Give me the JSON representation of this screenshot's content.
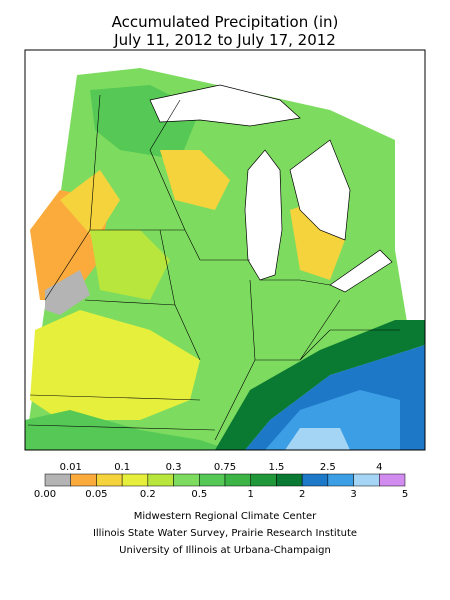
{
  "title": [
    "Accumulated Precipitation (in)",
    "July 11, 2012 to July 17, 2012"
  ],
  "legend": {
    "labels": [
      "0.00",
      "0.01",
      "0.05",
      "0.1",
      "0.2",
      "0.3",
      "0.5",
      "0.75",
      "1",
      "1.5",
      "2",
      "2.5",
      "3",
      "4",
      "5"
    ],
    "colors": [
      "#b4b4b4",
      "#fbab3c",
      "#f5d33c",
      "#e6ef3c",
      "#b9e63c",
      "#7ddc5f",
      "#55c855",
      "#3cb446",
      "#20983a",
      "#0a7a32",
      "#1e78c8",
      "#3c9fe6",
      "#a5d5f5",
      "#d28cf0"
    ]
  },
  "credits": [
    "Midwestern Regional Climate Center",
    "Illinois State Water Survey, Prairie Research Institute",
    "University of Illinois at Urbana-Champaign"
  ]
}
